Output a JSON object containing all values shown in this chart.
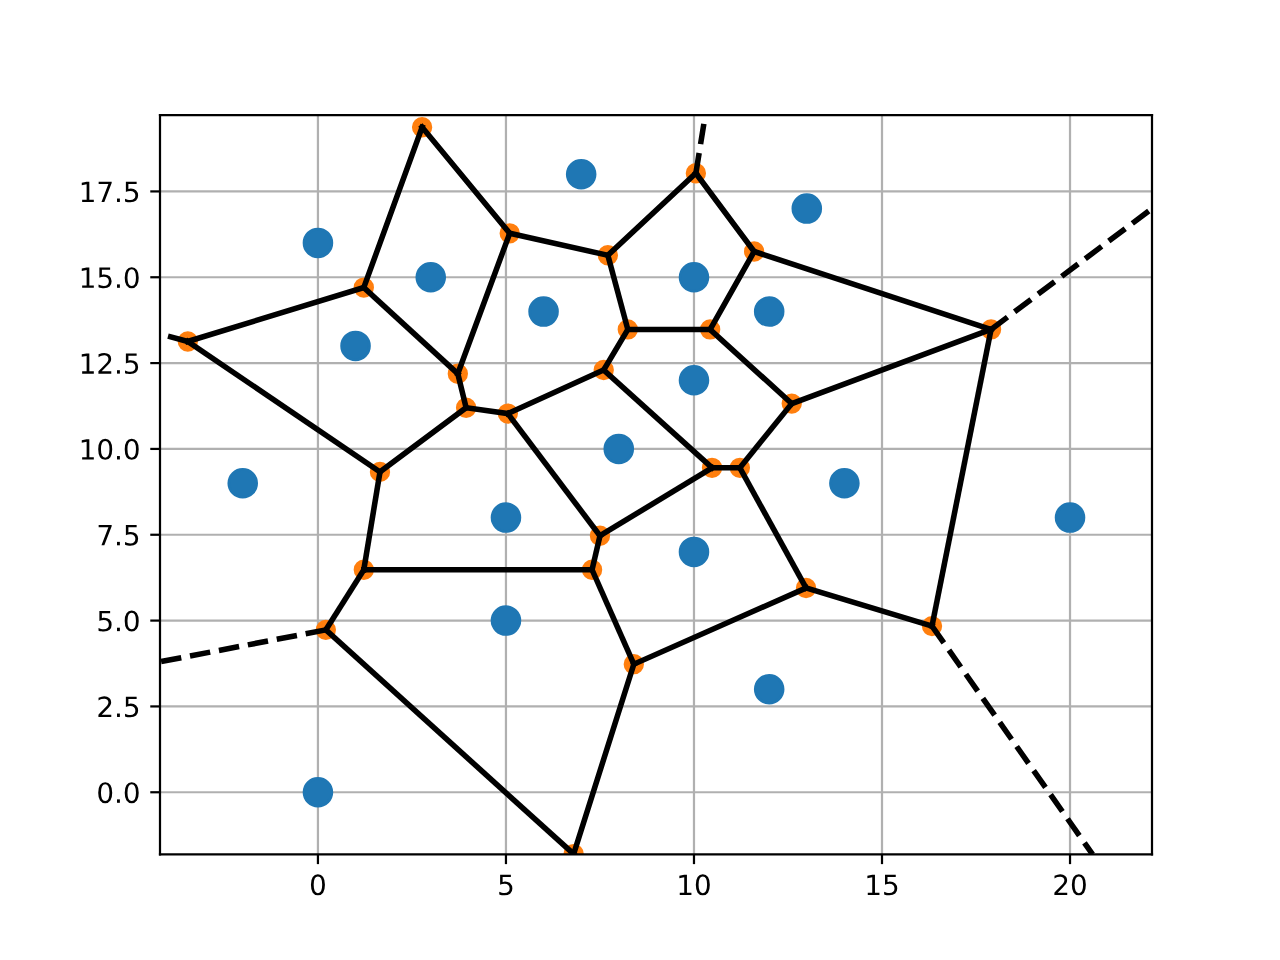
{
  "chart_data": {
    "type": "line",
    "grid": true,
    "xlim": [
      -4.2,
      22.18
    ],
    "ylim": [
      -1.81,
      19.72
    ],
    "xticks": [
      0,
      5,
      10,
      15,
      20
    ],
    "yticks": [
      {
        "value": 0,
        "label": "0.0"
      },
      {
        "value": 2.5,
        "label": "2.5"
      },
      {
        "value": 5,
        "label": "5.0"
      },
      {
        "value": 7.5,
        "label": "7.5"
      },
      {
        "value": 10,
        "label": "10.0"
      },
      {
        "value": 12.5,
        "label": "12.5"
      },
      {
        "value": 15,
        "label": "15.0"
      },
      {
        "value": 17.5,
        "label": "17.5"
      }
    ],
    "series": [
      {
        "type": "scatter",
        "marker": "circle",
        "color": "#1f77b4",
        "x": [
          0,
          0,
          1,
          -2,
          3,
          5,
          5,
          6,
          7,
          8,
          10,
          10,
          10,
          12,
          12,
          13,
          14,
          20
        ],
        "values": [
          0,
          16,
          13,
          9,
          15,
          8,
          5,
          14,
          18,
          10,
          15,
          12,
          7,
          14,
          3,
          17,
          9,
          8
        ]
      },
      {
        "type": "scatter",
        "marker": "circle",
        "color": "#ff7f0e",
        "x": [
          2.77,
          5.1,
          7.71,
          10.05,
          11.6,
          1.22,
          -3.46,
          3.72,
          3.94,
          5.05,
          7.6,
          8.24,
          10.43,
          12.6,
          17.9,
          1.65,
          7.5,
          10.48,
          11.22,
          1.22,
          7.29,
          12.98,
          16.33,
          0.21,
          8.4,
          6.8
        ],
        "values": [
          19.37,
          16.28,
          15.64,
          18.03,
          15.75,
          14.7,
          13.13,
          12.19,
          11.2,
          11.03,
          12.3,
          13.48,
          13.48,
          11.32,
          13.48,
          9.33,
          7.47,
          9.45,
          9.45,
          6.48,
          6.48,
          5.95,
          4.84,
          4.73,
          3.73,
          -1.8
        ]
      },
      {
        "color": "#000000",
        "line_style": "solid",
        "x": [
          2.77,
          1.22
        ],
        "values": [
          19.37,
          14.7
        ]
      },
      {
        "color": "#000000",
        "line_style": "solid",
        "x": [
          2.77,
          5.1
        ],
        "values": [
          19.37,
          16.28
        ]
      },
      {
        "color": "#000000",
        "line_style": "solid",
        "x": [
          5.1,
          7.71
        ],
        "values": [
          16.28,
          15.64
        ]
      },
      {
        "color": "#000000",
        "line_style": "solid",
        "x": [
          5.1,
          3.72
        ],
        "values": [
          16.28,
          12.19
        ]
      },
      {
        "color": "#000000",
        "line_style": "solid",
        "x": [
          7.71,
          10.05
        ],
        "values": [
          15.64,
          18.03
        ]
      },
      {
        "color": "#000000",
        "line_style": "solid",
        "x": [
          7.71,
          8.24
        ],
        "values": [
          15.64,
          13.48
        ]
      },
      {
        "color": "#000000",
        "line_style": "solid",
        "x": [
          10.05,
          11.6
        ],
        "values": [
          18.03,
          15.75
        ]
      },
      {
        "color": "#000000",
        "line_style": "solid",
        "x": [
          11.6,
          10.43
        ],
        "values": [
          15.75,
          13.48
        ]
      },
      {
        "color": "#000000",
        "line_style": "solid",
        "x": [
          11.6,
          17.9
        ],
        "values": [
          15.75,
          13.48
        ]
      },
      {
        "color": "#000000",
        "line_style": "solid",
        "x": [
          1.22,
          -3.46
        ],
        "values": [
          14.7,
          13.13
        ]
      },
      {
        "color": "#000000",
        "line_style": "solid",
        "x": [
          1.22,
          3.72
        ],
        "values": [
          14.7,
          12.19
        ]
      },
      {
        "color": "#000000",
        "line_style": "solid",
        "x": [
          3.72,
          3.94
        ],
        "values": [
          12.19,
          11.2
        ]
      },
      {
        "color": "#000000",
        "line_style": "solid",
        "x": [
          3.94,
          5.05
        ],
        "values": [
          11.2,
          11.03
        ]
      },
      {
        "color": "#000000",
        "line_style": "solid",
        "x": [
          3.94,
          1.65
        ],
        "values": [
          11.2,
          9.33
        ]
      },
      {
        "color": "#000000",
        "line_style": "solid",
        "x": [
          5.05,
          7.6
        ],
        "values": [
          11.03,
          12.3
        ]
      },
      {
        "color": "#000000",
        "line_style": "solid",
        "x": [
          5.05,
          7.5
        ],
        "values": [
          11.03,
          7.47
        ]
      },
      {
        "color": "#000000",
        "line_style": "solid",
        "x": [
          7.6,
          8.24
        ],
        "values": [
          12.3,
          13.48
        ]
      },
      {
        "color": "#000000",
        "line_style": "solid",
        "x": [
          7.6,
          10.48
        ],
        "values": [
          12.3,
          9.45
        ]
      },
      {
        "color": "#000000",
        "line_style": "solid",
        "x": [
          8.24,
          10.43
        ],
        "values": [
          13.48,
          13.48
        ]
      },
      {
        "color": "#000000",
        "line_style": "solid",
        "x": [
          10.43,
          12.6
        ],
        "values": [
          13.48,
          11.32
        ]
      },
      {
        "color": "#000000",
        "line_style": "solid",
        "x": [
          12.6,
          17.9
        ],
        "values": [
          11.32,
          13.48
        ]
      },
      {
        "color": "#000000",
        "line_style": "solid",
        "x": [
          12.6,
          11.22
        ],
        "values": [
          11.32,
          9.45
        ]
      },
      {
        "color": "#000000",
        "line_style": "solid",
        "x": [
          10.48,
          11.22
        ],
        "values": [
          9.45,
          9.45
        ]
      },
      {
        "color": "#000000",
        "line_style": "solid",
        "x": [
          10.48,
          7.5
        ],
        "values": [
          9.45,
          7.47
        ]
      },
      {
        "color": "#000000",
        "line_style": "solid",
        "x": [
          11.22,
          12.98
        ],
        "values": [
          9.45,
          5.95
        ]
      },
      {
        "color": "#000000",
        "line_style": "solid",
        "x": [
          -3.46,
          1.65
        ],
        "values": [
          13.13,
          9.33
        ]
      },
      {
        "color": "#000000",
        "line_style": "solid",
        "x": [
          1.65,
          1.22
        ],
        "values": [
          9.33,
          6.48
        ]
      },
      {
        "color": "#000000",
        "line_style": "solid",
        "x": [
          7.5,
          7.29
        ],
        "values": [
          7.47,
          6.48
        ]
      },
      {
        "color": "#000000",
        "line_style": "solid",
        "x": [
          1.22,
          7.29
        ],
        "values": [
          6.48,
          6.48
        ]
      },
      {
        "color": "#000000",
        "line_style": "solid",
        "x": [
          7.29,
          8.4
        ],
        "values": [
          6.48,
          3.73
        ]
      },
      {
        "color": "#000000",
        "line_style": "solid",
        "x": [
          1.22,
          0.21
        ],
        "values": [
          6.48,
          4.73
        ]
      },
      {
        "color": "#000000",
        "line_style": "solid",
        "x": [
          0.21,
          6.8
        ],
        "values": [
          4.73,
          -1.8
        ]
      },
      {
        "color": "#000000",
        "line_style": "solid",
        "x": [
          8.4,
          6.8
        ],
        "values": [
          3.73,
          -1.8
        ]
      },
      {
        "color": "#000000",
        "line_style": "solid",
        "x": [
          8.4,
          12.98
        ],
        "values": [
          3.73,
          5.95
        ]
      },
      {
        "color": "#000000",
        "line_style": "solid",
        "x": [
          12.98,
          16.33
        ],
        "values": [
          5.95,
          4.84
        ]
      },
      {
        "color": "#000000",
        "line_style": "solid",
        "x": [
          16.33,
          17.9
        ],
        "values": [
          4.84,
          13.48
        ]
      },
      {
        "color": "#000000",
        "line_style": "dashed",
        "x": [
          10.05,
          10.3
        ],
        "values": [
          18.03,
          19.72
        ]
      },
      {
        "color": "#000000",
        "line_style": "dashed",
        "x": [
          17.9,
          22.18
        ],
        "values": [
          13.48,
          17.0
        ]
      },
      {
        "color": "#000000",
        "line_style": "dashed",
        "x": [
          16.33,
          20.6
        ],
        "values": [
          4.84,
          -1.81
        ]
      },
      {
        "color": "#000000",
        "line_style": "dashed",
        "x": [
          0.21,
          -4.2
        ],
        "values": [
          4.73,
          3.8
        ]
      },
      {
        "color": "#000000",
        "line_style": "dashed",
        "x": [
          -3.46,
          -4.2
        ],
        "values": [
          13.13,
          13.35
        ]
      }
    ]
  }
}
